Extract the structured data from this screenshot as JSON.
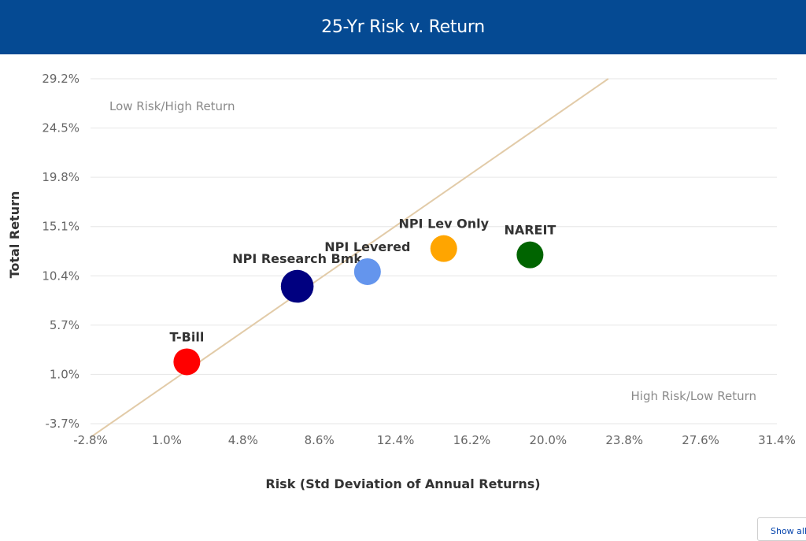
{
  "header": {
    "title": "25-Yr Risk v. Return"
  },
  "show_all_button": {
    "label": "Show all"
  },
  "colors": {
    "header_bg": "#054a93",
    "grid": "#e6e6e6",
    "trend_line": "#e2cba8"
  },
  "chart_data": {
    "type": "scatter",
    "title": "25-Yr Risk v. Return",
    "xlabel": "Risk (Std Deviation of Annual Returns)",
    "ylabel": "Total Return",
    "xlim": [
      -2.8,
      31.4
    ],
    "ylim": [
      -3.7,
      29.2
    ],
    "x_ticks": [
      "-2.8%",
      "1.0%",
      "4.8%",
      "8.6%",
      "12.4%",
      "16.2%",
      "20.0%",
      "23.8%",
      "27.6%",
      "31.4%"
    ],
    "y_ticks": [
      "29.2%",
      "24.5%",
      "19.8%",
      "15.1%",
      "10.4%",
      "5.7%",
      "1.0%",
      "-3.7%"
    ],
    "grid": "horizontal",
    "quadrant_labels": {
      "top_left": "Low Risk/High Return",
      "bottom_right": "High Risk/Low Return"
    },
    "reference_line": {
      "from": [
        -2.8,
        -5.0
      ],
      "to": [
        23.0,
        29.2
      ],
      "color": "#e2cba8"
    },
    "points": [
      {
        "name": "T-Bill",
        "x": 2.0,
        "y": 2.2,
        "size": 1.0,
        "color": "#ff0000"
      },
      {
        "name": "NPI Research Bmk",
        "x": 7.5,
        "y": 9.4,
        "size": 1.5,
        "color": "#000080"
      },
      {
        "name": "NPI Levered",
        "x": 11.0,
        "y": 10.8,
        "size": 1.0,
        "color": "#6495ed"
      },
      {
        "name": "NPI Lev Only",
        "x": 14.8,
        "y": 13.0,
        "size": 1.0,
        "color": "#ffa500"
      },
      {
        "name": "NAREIT",
        "x": 19.1,
        "y": 12.4,
        "size": 1.0,
        "color": "#006400"
      }
    ]
  }
}
